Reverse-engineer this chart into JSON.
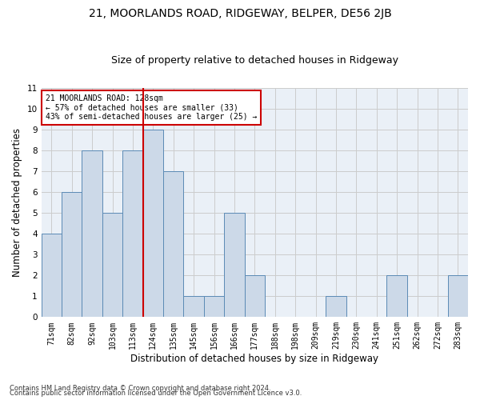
{
  "title": "21, MOORLANDS ROAD, RIDGEWAY, BELPER, DE56 2JB",
  "subtitle": "Size of property relative to detached houses in Ridgeway",
  "xlabel": "Distribution of detached houses by size in Ridgeway",
  "ylabel": "Number of detached properties",
  "bar_labels": [
    "71sqm",
    "82sqm",
    "92sqm",
    "103sqm",
    "113sqm",
    "124sqm",
    "135sqm",
    "145sqm",
    "156sqm",
    "166sqm",
    "177sqm",
    "188sqm",
    "198sqm",
    "209sqm",
    "219sqm",
    "230sqm",
    "241sqm",
    "251sqm",
    "262sqm",
    "272sqm",
    "283sqm"
  ],
  "bar_values": [
    4,
    6,
    8,
    5,
    8,
    9,
    7,
    1,
    1,
    5,
    2,
    0,
    0,
    0,
    1,
    0,
    0,
    2,
    0,
    0,
    2
  ],
  "bar_color": "#ccd9e8",
  "bar_edge_color": "#5b8ab5",
  "vline_after_index": 5,
  "vline_color": "#cc0000",
  "annotation_text": "21 MOORLANDS ROAD: 128sqm\n← 57% of detached houses are smaller (33)\n43% of semi-detached houses are larger (25) →",
  "annotation_box_color": "#ffffff",
  "annotation_box_edge": "#cc0000",
  "ylim": [
    0,
    11
  ],
  "yticks": [
    0,
    1,
    2,
    3,
    4,
    5,
    6,
    7,
    8,
    9,
    10,
    11
  ],
  "grid_color": "#cccccc",
  "bg_color": "#eaf0f7",
  "footer1": "Contains HM Land Registry data © Crown copyright and database right 2024.",
  "footer2": "Contains public sector information licensed under the Open Government Licence v3.0.",
  "title_fontsize": 10,
  "subtitle_fontsize": 9,
  "tick_fontsize": 7,
  "ylabel_fontsize": 8.5,
  "xlabel_fontsize": 8.5
}
